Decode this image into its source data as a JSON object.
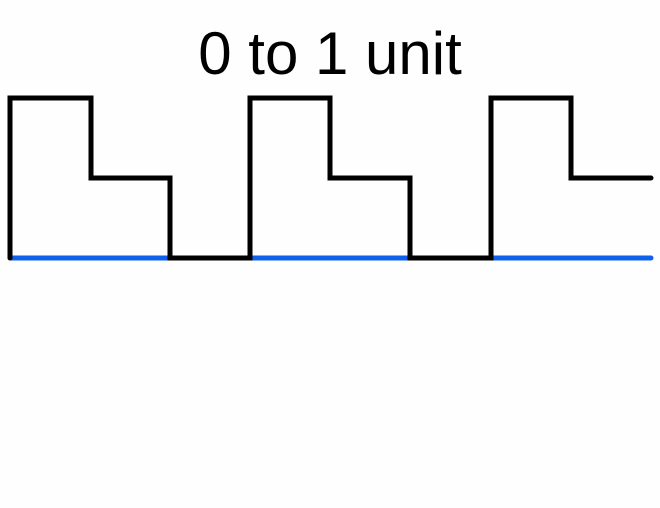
{
  "title": "0 to 1 unit",
  "colors": {
    "background": "#fefefe",
    "waveform": "#000000",
    "baseline": "#1060ee"
  },
  "waveform": {
    "description_levels": [
      1,
      0.5,
      0
    ],
    "pattern": [
      1,
      0.5,
      0,
      1,
      0.5,
      0,
      1,
      0.5
    ]
  }
}
